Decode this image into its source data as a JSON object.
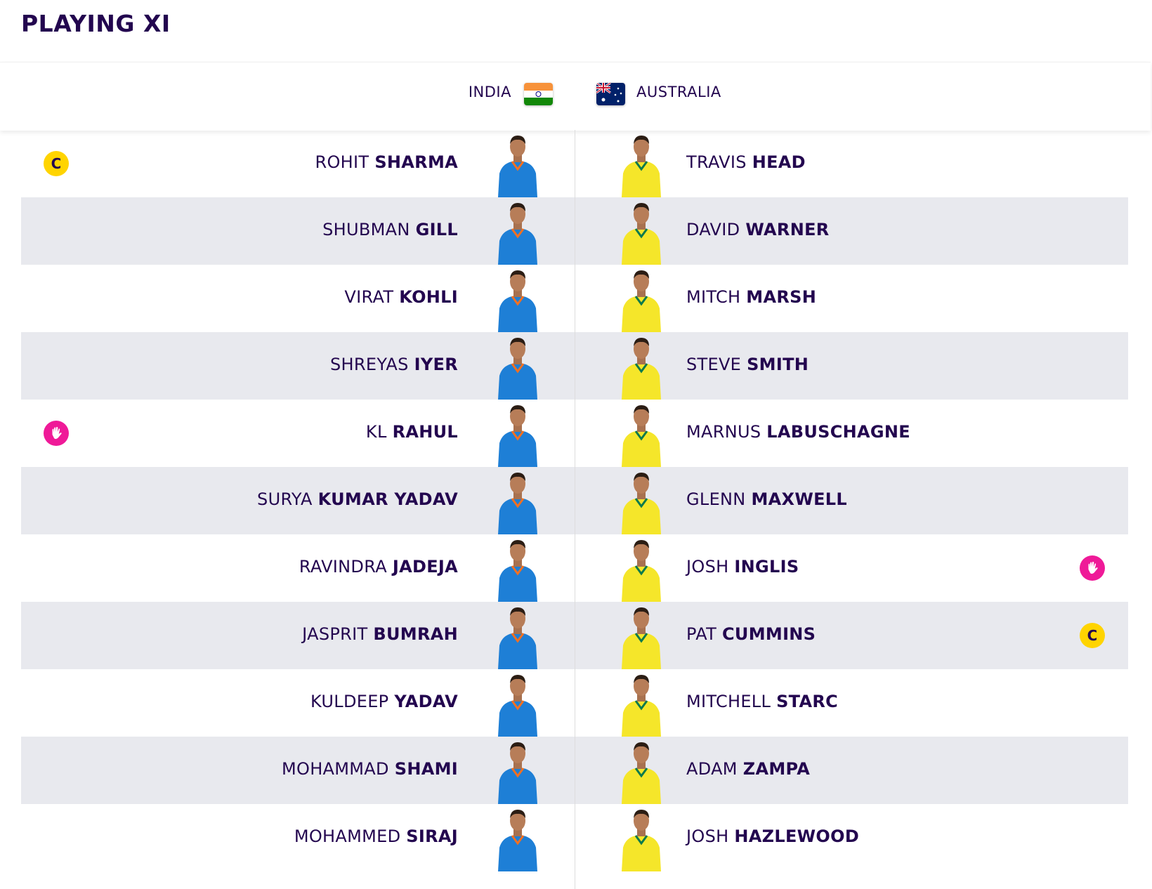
{
  "title": "PLAYING XI",
  "teams": [
    {
      "name": "INDIA",
      "players": [
        {
          "first": "ROHIT",
          "last": "SHARMA",
          "badge": "C"
        },
        {
          "first": "SHUBMAN",
          "last": "GILL"
        },
        {
          "first": "VIRAT",
          "last": "KOHLI"
        },
        {
          "first": "SHREYAS",
          "last": "IYER"
        },
        {
          "first": "KL",
          "last": "RAHUL",
          "wicketkeeper": true
        },
        {
          "first": "SURYA",
          "last": "KUMAR YADAV"
        },
        {
          "first": "RAVINDRA",
          "last": "JADEJA"
        },
        {
          "first": "JASPRIT",
          "last": "BUMRAH"
        },
        {
          "first": "KULDEEP",
          "last": "YADAV"
        },
        {
          "first": "MOHAMMAD",
          "last": "SHAMI"
        },
        {
          "first": "MOHAMMED",
          "last": "SIRAJ"
        }
      ]
    },
    {
      "name": "AUSTRALIA",
      "players": [
        {
          "first": "TRAVIS",
          "last": "HEAD"
        },
        {
          "first": "DAVID",
          "last": "WARNER"
        },
        {
          "first": "MITCH",
          "last": "MARSH"
        },
        {
          "first": "STEVE",
          "last": "SMITH"
        },
        {
          "first": "MARNUS",
          "last": "LABUSCHAGNE"
        },
        {
          "first": "GLENN",
          "last": "MAXWELL"
        },
        {
          "first": "JOSH",
          "last": "INGLIS",
          "wicketkeeper": true
        },
        {
          "first": "PAT",
          "last": "CUMMINS",
          "badge": "C"
        },
        {
          "first": "MITCHELL",
          "last": "STARC"
        },
        {
          "first": "ADAM",
          "last": "ZAMPA"
        },
        {
          "first": "JOSH",
          "last": "HAZLEWOOD"
        }
      ]
    }
  ]
}
